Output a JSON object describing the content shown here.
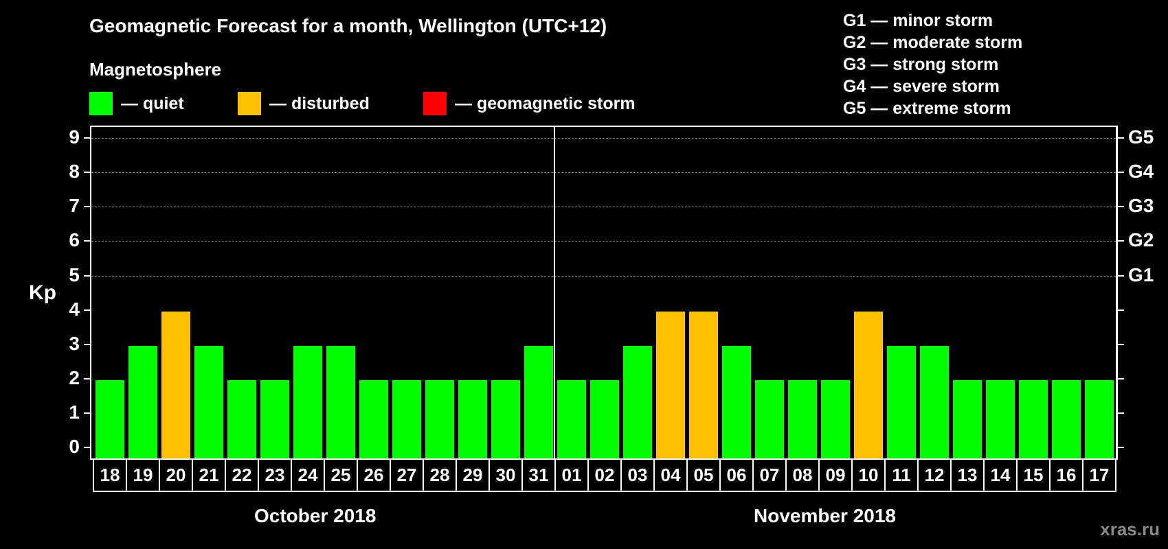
{
  "title": "Geomagnetic Forecast for a month, Wellington (UTC+12)",
  "subtitle": "Magnetosphere",
  "legend": [
    {
      "label": "— quiet",
      "color": "#00ff00"
    },
    {
      "label": "— disturbed",
      "color": "#ffc000"
    },
    {
      "label": "— geomagnetic storm",
      "color": "#ff0000"
    }
  ],
  "g_legend": [
    "G1 — minor storm",
    "G2 — moderate storm",
    "G3 — strong storm",
    "G4 — severe storm",
    "G5 — extreme storm"
  ],
  "y_axis_label": "Kp",
  "watermark": "xras.ru",
  "months": [
    "October 2018",
    "November 2018"
  ],
  "chart_data": {
    "type": "bar",
    "title": "Geomagnetic Forecast for a month, Wellington (UTC+12)",
    "xlabel": "",
    "ylabel": "Kp",
    "ylim": [
      0,
      9
    ],
    "yticks": [
      0,
      1,
      2,
      3,
      4,
      5,
      6,
      7,
      8,
      9
    ],
    "right_ticks": {
      "5": "G1",
      "6": "G2",
      "7": "G3",
      "8": "G4",
      "9": "G5"
    },
    "grid": "dashed horizontal at 5-9",
    "month_groups": [
      {
        "label": "October 2018",
        "days": [
          "18",
          "19",
          "20",
          "21",
          "22",
          "23",
          "24",
          "25",
          "26",
          "27",
          "28",
          "29",
          "30",
          "31"
        ]
      },
      {
        "label": "November 2018",
        "days": [
          "01",
          "02",
          "03",
          "04",
          "05",
          "06",
          "07",
          "08",
          "09",
          "10",
          "11",
          "12",
          "13",
          "14",
          "15",
          "16",
          "17"
        ]
      }
    ],
    "categories": [
      "18",
      "19",
      "20",
      "21",
      "22",
      "23",
      "24",
      "25",
      "26",
      "27",
      "28",
      "29",
      "30",
      "31",
      "01",
      "02",
      "03",
      "04",
      "05",
      "06",
      "07",
      "08",
      "09",
      "10",
      "11",
      "12",
      "13",
      "14",
      "15",
      "16",
      "17"
    ],
    "values": [
      2,
      3,
      4,
      3,
      2,
      2,
      3,
      3,
      2,
      2,
      2,
      2,
      2,
      3,
      2,
      2,
      3,
      4,
      4,
      3,
      2,
      2,
      2,
      4,
      3,
      3,
      2,
      2,
      2,
      2,
      2
    ],
    "status": [
      "quiet",
      "quiet",
      "disturbed",
      "quiet",
      "quiet",
      "quiet",
      "quiet",
      "quiet",
      "quiet",
      "quiet",
      "quiet",
      "quiet",
      "quiet",
      "quiet",
      "quiet",
      "quiet",
      "quiet",
      "disturbed",
      "disturbed",
      "quiet",
      "quiet",
      "quiet",
      "quiet",
      "disturbed",
      "quiet",
      "quiet",
      "quiet",
      "quiet",
      "quiet",
      "quiet",
      "quiet"
    ],
    "colors": {
      "quiet": "#00ff00",
      "disturbed": "#ffc000",
      "storm": "#ff0000"
    }
  }
}
